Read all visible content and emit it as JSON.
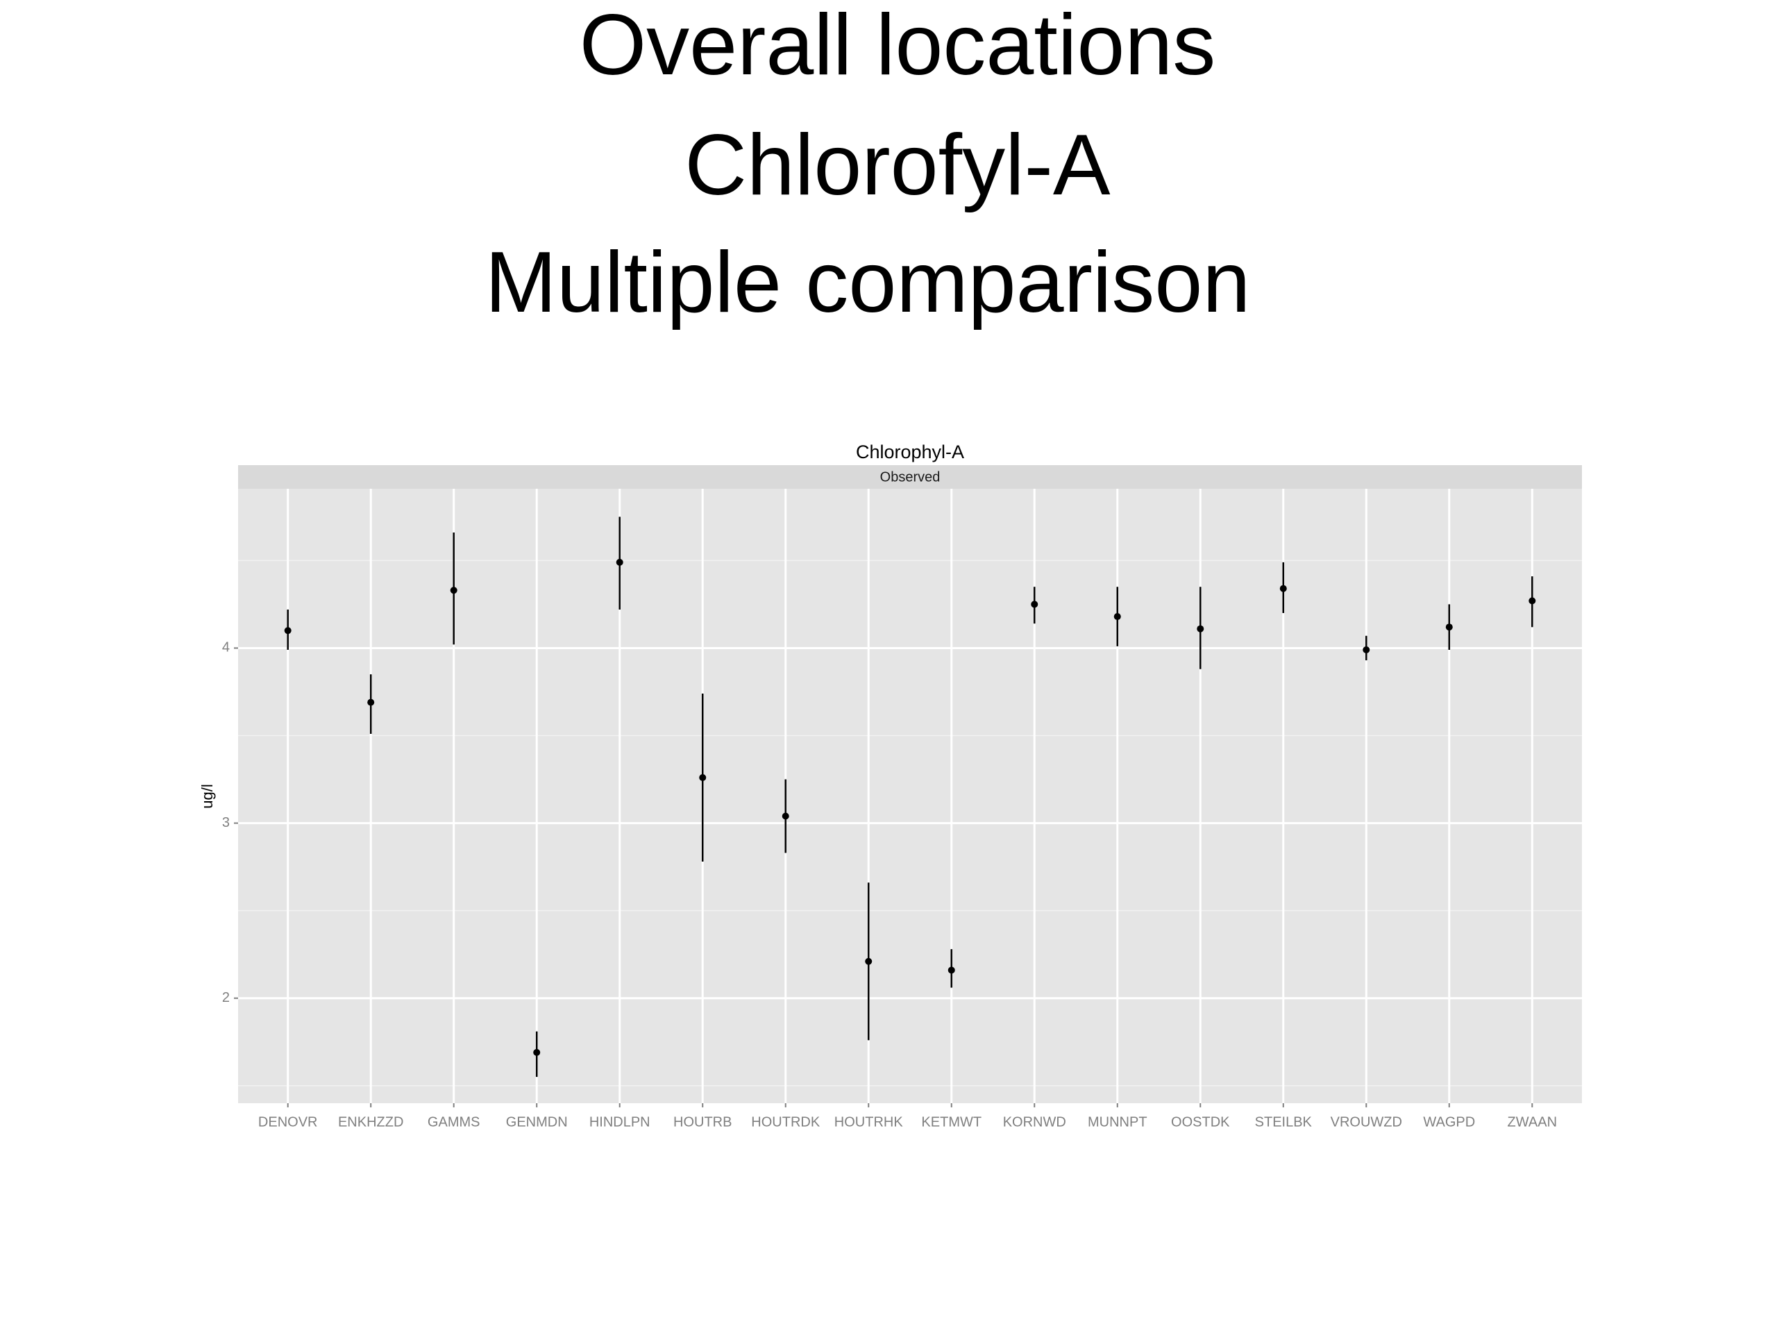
{
  "slide": {
    "title_lines": [
      "Overall locations",
      "Chlorofyl-A",
      "Multiple comparison"
    ]
  },
  "chart_data": {
    "type": "errorbar",
    "title": "Chlorophyl-A",
    "facet_label": "Observed",
    "ylabel": "ug/l",
    "categories": [
      "DENOVR",
      "ENKHZZD",
      "GAMMS",
      "GENMDN",
      "HINDLPN",
      "HOUTRB",
      "HOUTRDK",
      "HOUTRHK",
      "KETMWT",
      "KORNWD",
      "MUNNPT",
      "OOSTDK",
      "STEILBK",
      "VROUWZD",
      "WAGPD",
      "ZWAAN"
    ],
    "series": [
      {
        "color": "#000000",
        "values": [
          4.1,
          3.69,
          4.33,
          1.69,
          4.49,
          3.26,
          3.04,
          2.21,
          2.16,
          4.25,
          4.18,
          4.11,
          4.34,
          3.99,
          4.12,
          4.27
        ],
        "lower": [
          3.99,
          3.51,
          4.02,
          1.55,
          4.22,
          2.78,
          2.83,
          1.76,
          2.06,
          4.14,
          4.01,
          3.88,
          4.2,
          3.93,
          3.99,
          4.12
        ],
        "upper": [
          4.22,
          3.85,
          4.66,
          1.81,
          4.75,
          3.74,
          3.25,
          2.66,
          2.28,
          4.35,
          4.35,
          4.35,
          4.49,
          4.07,
          4.25,
          4.41
        ]
      }
    ],
    "ylim": [
      1.4,
      4.91
    ],
    "yticks": [
      2,
      3,
      4
    ],
    "yminor": [
      1.5,
      2.5,
      3.5,
      4.5
    ],
    "grid": true
  }
}
